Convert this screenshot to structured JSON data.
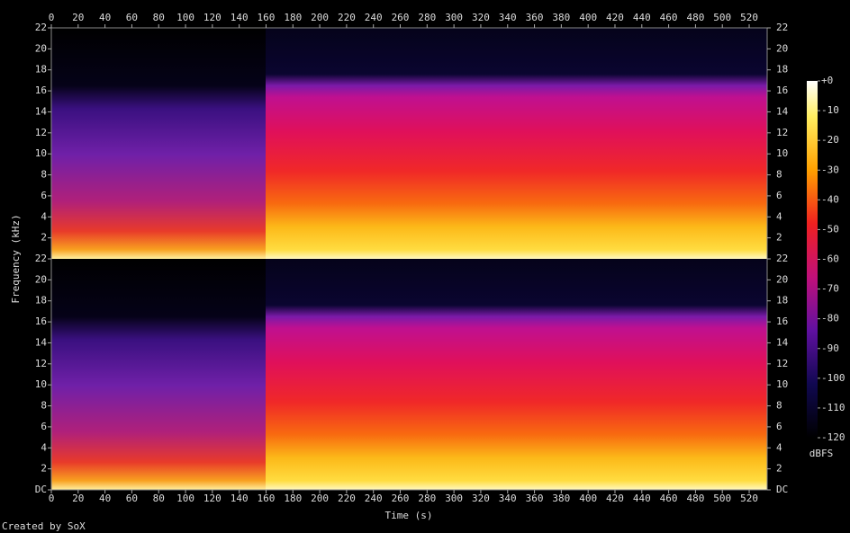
{
  "chart_data": {
    "type": "spectrogram",
    "xlabel": "Time (s)",
    "ylabel": "Frequency (kHz)",
    "xlim": [
      0,
      533.4
    ],
    "xticks": [
      0,
      20,
      40,
      60,
      80,
      100,
      120,
      140,
      160,
      180,
      200,
      220,
      240,
      260,
      280,
      300,
      320,
      340,
      360,
      380,
      400,
      420,
      440,
      460,
      480,
      500,
      520
    ],
    "channels": [
      {
        "ylim": [
          0,
          22
        ],
        "yticks": [
          2,
          4,
          6,
          8,
          10,
          12,
          14,
          16,
          18,
          20,
          22
        ]
      },
      {
        "ylim": [
          0,
          22
        ],
        "yticks": [
          {
            "value": 0,
            "label": "DC"
          },
          2,
          4,
          6,
          8,
          10,
          12,
          14,
          16,
          18,
          20,
          22
        ]
      }
    ],
    "colorbar": {
      "label": "dBFS",
      "lim": [
        -120,
        0
      ],
      "ticks": [
        {
          "value": 0,
          "label": "+0"
        },
        -10,
        -20,
        -30,
        -40,
        -50,
        -60,
        -70,
        -80,
        -90,
        -100,
        -110,
        -120
      ]
    },
    "footer": "Created by SoX"
  }
}
